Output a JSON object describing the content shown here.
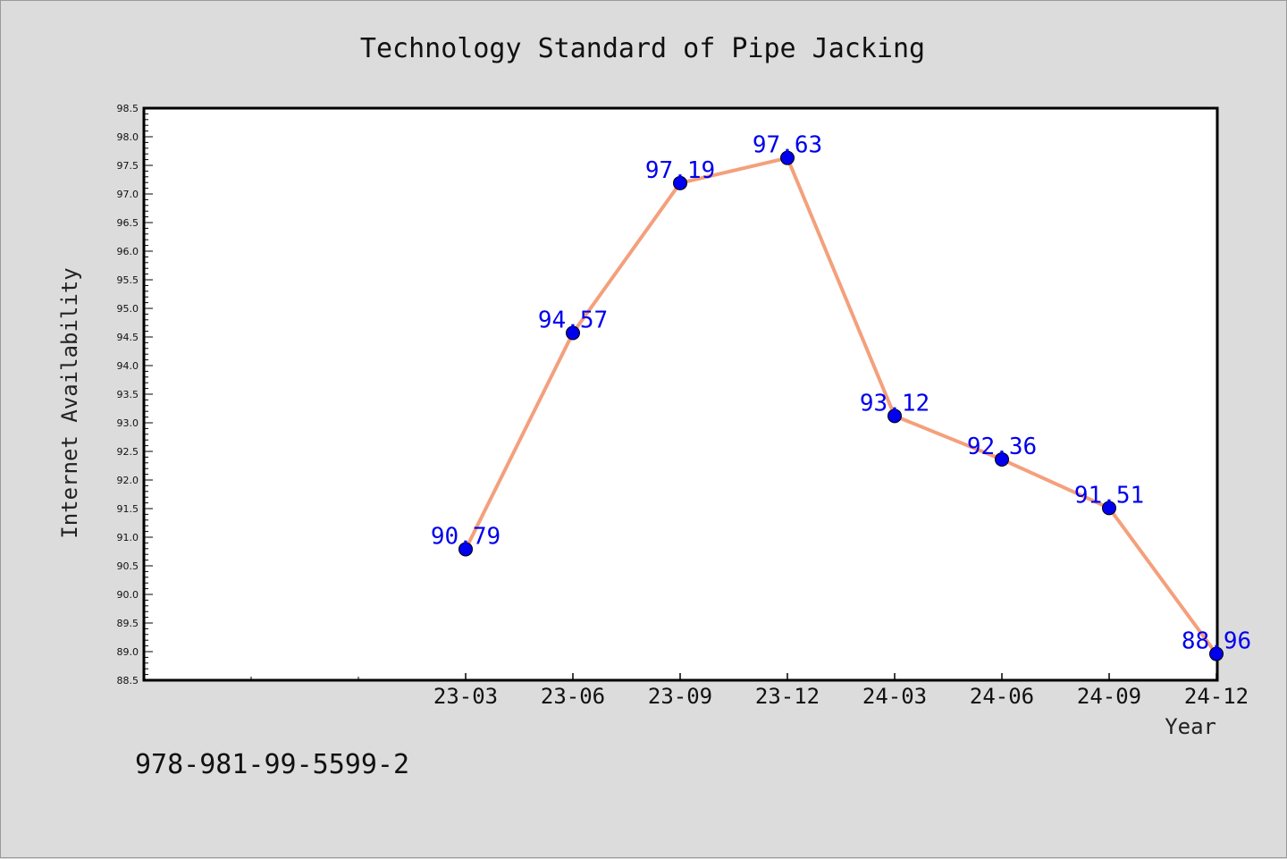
{
  "chart_data": {
    "type": "line",
    "title": "Technology Standard of Pipe Jacking",
    "xlabel": "Year",
    "ylabel": "Internet Availability",
    "categories": [
      "23-03",
      "23-06",
      "23-09",
      "23-12",
      "24-03",
      "24-06",
      "24-09",
      "24-12"
    ],
    "values": [
      90.79,
      94.57,
      97.19,
      97.63,
      93.12,
      92.36,
      91.51,
      88.96
    ],
    "value_labels": [
      "90.79",
      "94.57",
      "97.19",
      "97.63",
      "93.12",
      "92.36",
      "91.51",
      "88.96"
    ],
    "ylim": [
      88.5,
      98.5
    ],
    "ytick_step": 0.5,
    "grid": false,
    "legend": "none",
    "line_color": "#f4a07c",
    "marker_color": "#0000ee",
    "label_color": "#0000ee"
  },
  "footer": {
    "isbn": "978-981-99-5599-2"
  }
}
